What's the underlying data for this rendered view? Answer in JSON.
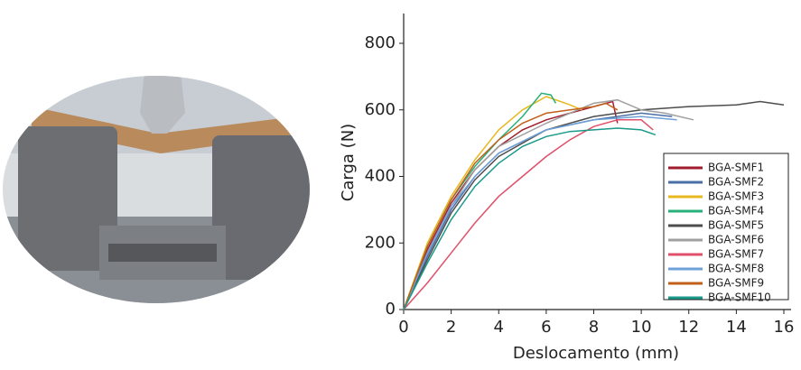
{
  "chart_data": {
    "type": "line",
    "xlabel": "Deslocamento (mm)",
    "ylabel": "Carga (N)",
    "xlim": [
      0,
      16
    ],
    "xticks": [
      0,
      2,
      4,
      6,
      8,
      10,
      12,
      14,
      16
    ],
    "ylim": [
      0,
      800
    ],
    "yticks": [
      0,
      200,
      400,
      600,
      800
    ],
    "legend_position": "center right",
    "series": [
      {
        "name": "BGA-SMF1",
        "color": "#a11d2e",
        "x": [
          0,
          1,
          2,
          3,
          4,
          5,
          6,
          7,
          8,
          8.8,
          9
        ],
        "values": [
          0,
          180,
          320,
          420,
          490,
          540,
          570,
          590,
          610,
          625,
          560
        ]
      },
      {
        "name": "BGA-SMF2",
        "color": "#4a6fa5",
        "x": [
          0,
          1,
          2,
          3,
          4,
          6,
          8,
          10,
          11.3
        ],
        "values": [
          0,
          160,
          300,
          400,
          470,
          540,
          570,
          590,
          580
        ]
      },
      {
        "name": "BGA-SMF3",
        "color": "#e8b820",
        "x": [
          0,
          1,
          2,
          3,
          4,
          5,
          6,
          7,
          7.5
        ],
        "values": [
          0,
          200,
          340,
          450,
          540,
          600,
          640,
          615,
          600
        ]
      },
      {
        "name": "BGA-SMF4",
        "color": "#27b07a",
        "x": [
          0,
          1,
          2,
          3,
          4,
          5,
          5.8,
          6.2,
          6.4
        ],
        "values": [
          0,
          190,
          330,
          430,
          510,
          580,
          650,
          645,
          620
        ]
      },
      {
        "name": "BGA-SMF5",
        "color": "#4d4d4d",
        "x": [
          0,
          1,
          2,
          3,
          4,
          6,
          8,
          10,
          12,
          14,
          15,
          16
        ],
        "values": [
          0,
          150,
          290,
          390,
          460,
          540,
          580,
          600,
          610,
          615,
          625,
          615
        ]
      },
      {
        "name": "BGA-SMF6",
        "color": "#a0a0a0",
        "x": [
          0,
          1,
          2,
          3,
          4,
          6,
          8,
          9,
          10,
          11,
          12.2
        ],
        "values": [
          0,
          170,
          310,
          420,
          490,
          560,
          620,
          630,
          600,
          590,
          570
        ]
      },
      {
        "name": "BGA-SMF7",
        "color": "#e0506a",
        "x": [
          0,
          1,
          2,
          3,
          4,
          5,
          6,
          7,
          8,
          9,
          10,
          10.5
        ],
        "values": [
          0,
          80,
          170,
          260,
          340,
          400,
          460,
          510,
          550,
          570,
          570,
          540
        ]
      },
      {
        "name": "BGA-SMF8",
        "color": "#6fa0d8",
        "x": [
          0,
          1,
          2,
          3,
          4,
          6,
          8,
          10,
          11.5
        ],
        "values": [
          0,
          170,
          310,
          400,
          470,
          540,
          570,
          580,
          570
        ]
      },
      {
        "name": "BGA-SMF9",
        "color": "#c0601a",
        "x": [
          0,
          1,
          2,
          3,
          4,
          5,
          6,
          7,
          8,
          8.5,
          9
        ],
        "values": [
          0,
          190,
          330,
          440,
          510,
          560,
          590,
          600,
          610,
          620,
          600
        ]
      },
      {
        "name": "BGA-SMF10",
        "color": "#1a9a8a",
        "x": [
          0,
          1,
          2,
          3,
          4,
          5,
          6,
          7,
          8,
          9,
          10,
          10.6
        ],
        "values": [
          0,
          140,
          270,
          370,
          440,
          490,
          520,
          535,
          540,
          545,
          540,
          525
        ]
      }
    ]
  }
}
